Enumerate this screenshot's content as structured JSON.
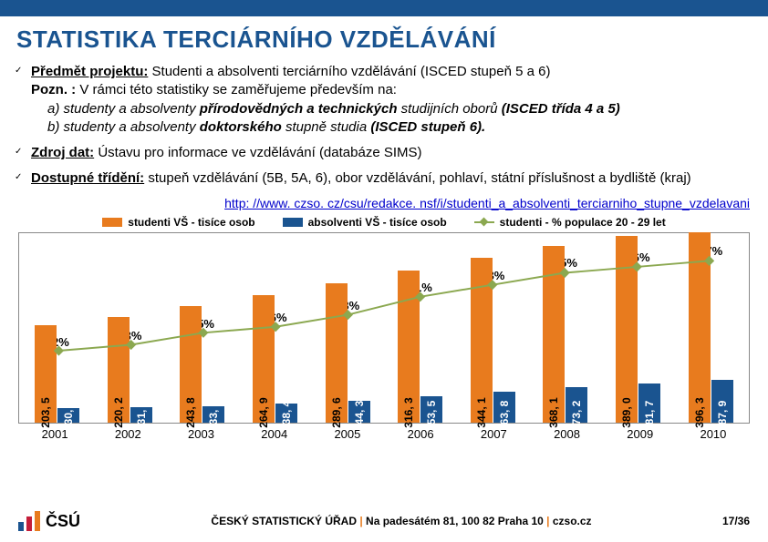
{
  "title": "STATISTIKA TERCIÁRNÍHO VZDĚLÁVÁNÍ",
  "bullets": {
    "b1_label": "Předmět projektu:",
    "b1_text": " Studenti a absolventi  terciárního vzdělávání (ISCED stupeň 5 a 6)",
    "b1_pozn": "Pozn. : ",
    "b1_pozn_text": "V rámci této statistiky se zaměřujeme především na:",
    "b1_a_prefix": "a)  studenty a absolventy ",
    "b1_a_bold": "přírodovědných a technických",
    "b1_a_suffix": " studijních oborů ",
    "b1_a_paren": "(ISCED třída 4 a 5)",
    "b1_b_prefix": "b)  studenty a absolventy ",
    "b1_b_bold": "doktorského",
    "b1_b_suffix": " stupně studia ",
    "b1_b_paren": "(ISCED stupeň 6).",
    "b2_label": "Zdroj dat:",
    "b2_text": " Ústavu pro informace ve vzdělávání (databáze SIMS)",
    "b3_label": "Dostupné třídění:",
    "b3_text": " stupeň vzdělávání (5B, 5A, 6), obor vzdělávání, pohlaví, státní příslušnost a bydliště (kraj)"
  },
  "link_text": "http: //www. czso. cz/csu/redakce. nsf/i/studenti_a_absolventi_terciarniho_stupne_vzdelavani",
  "legend": {
    "s1": "studenti VŠ - tisíce osob",
    "s2": "absolventi VŠ - tisíce osob",
    "s3": "studenti - % populace 20 - 29 let"
  },
  "chart": {
    "colors": {
      "students": "#e87b1e",
      "graduates": "#1a5490",
      "line": "#8ba850",
      "border": "#888888",
      "bg": "#ffffff"
    },
    "max_value": 400,
    "max_pct": 28,
    "years": [
      "2001",
      "2002",
      "2003",
      "2004",
      "2005",
      "2006",
      "2007",
      "2008",
      "2009",
      "2010"
    ],
    "students": [
      203.5,
      220.2,
      243.8,
      264.9,
      289.6,
      316.3,
      344.1,
      368.1,
      389.0,
      396.3
    ],
    "graduates": [
      30.1,
      31.2,
      33.0,
      38.4,
      44.3,
      53.5,
      63.8,
      73.2,
      81.7,
      87.9
    ],
    "students_labels": [
      "203, 5",
      "220, 2",
      "243, 8",
      "264, 9",
      "289, 6",
      "316, 3",
      "344, 1",
      "368, 1",
      "389, 0",
      "396, 3"
    ],
    "graduates_labels": [
      "30, 1",
      "31, 2",
      "33, 0",
      "38, 4",
      "44, 3",
      "53, 5",
      "63, 8",
      "73, 2",
      "81, 7",
      "87, 9"
    ],
    "pct": [
      12,
      13,
      15,
      16,
      18,
      21,
      23,
      25,
      26,
      27
    ],
    "pct_labels": [
      "12%",
      "13%",
      "15%",
      "16%",
      "18%",
      "21%",
      "23%",
      "25%",
      "26%",
      "27%"
    ]
  },
  "footer": {
    "org": "ČESKÝ STATISTICKÝ ÚŘAD",
    "addr": "Na padesátém 81, 100 82 Praha 10",
    "site": "czso.cz",
    "page": "17/36",
    "logo_text": "ČSÚ",
    "logo_colors": [
      "#1a5490",
      "#c41e3a",
      "#e87b1e"
    ]
  }
}
